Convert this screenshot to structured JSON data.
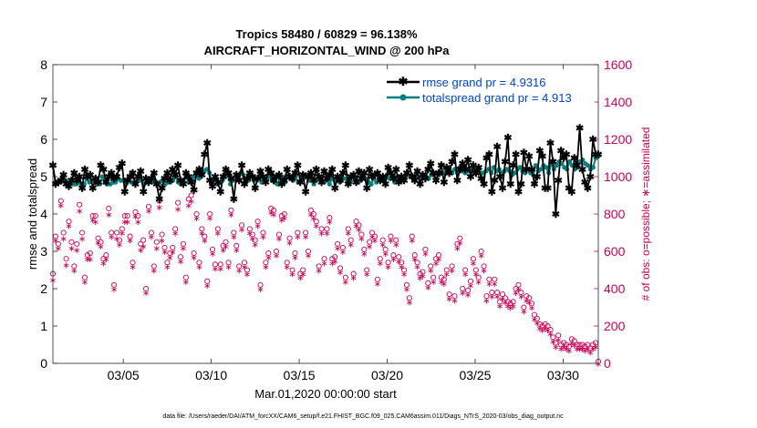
{
  "chart_data": {
    "type": "line",
    "title": "Tropics 58480 / 60829 = 96.138%",
    "subtitle": "AIRCRAFT_HORIZONTAL_WIND @ 200 hPa",
    "xlabel": "Mar.01,2020 00:00:00 start",
    "ylabel_left": "rmse and totalspread",
    "ylabel_right": "# of obs: o=possible; ∗=assimilated",
    "footer": "data file: /Users/raeder/DAI/ATM_forcXX/CAM6_setup/f.e21.FHIST_BGC.f09_025.CAM6assim.011/Diags_NTrS_2020-03/obs_diag_output.nc",
    "xlim": [
      1.0,
      32.0
    ],
    "ylim_left": [
      0,
      8
    ],
    "ylim_right": [
      0,
      1600
    ],
    "x_ticks": [
      5,
      10,
      15,
      20,
      25,
      30
    ],
    "x_tick_labels": [
      "03/05",
      "03/10",
      "03/15",
      "03/20",
      "03/25",
      "03/30"
    ],
    "y_left_ticks": [
      "0",
      "1",
      "2",
      "3",
      "4",
      "5",
      "6",
      "7",
      "8"
    ],
    "y_right_ticks": [
      "0",
      "200",
      "400",
      "600",
      "800",
      "1000",
      "1200",
      "1400",
      "1600"
    ],
    "legend": [
      {
        "label": "rmse grand pr = 4.9316",
        "color": "#000000"
      },
      {
        "label": "totalspread grand pr = 4.913",
        "color": "#00807f"
      }
    ],
    "colors": {
      "rmse": "#000000",
      "spread": "#00807f",
      "obs": "#cc0055",
      "legend_text": "#0044cc"
    },
    "series": [
      {
        "name": "rmse",
        "axis": "left",
        "values": [
          5.3,
          4.8,
          4.85,
          4.9,
          5.05,
          4.8,
          4.75,
          4.9,
          5.1,
          4.9,
          5.0,
          4.7,
          5.2,
          5.0,
          5.05,
          4.7,
          4.95,
          4.85,
          5.3,
          5.2,
          4.85,
          5.0,
          5.1,
          4.95,
          5.0,
          5.25,
          5.35,
          4.6,
          4.9,
          5.0,
          5.1,
          4.8,
          5.0,
          5.15,
          4.6,
          4.95,
          4.85,
          4.95,
          5.1,
          4.8,
          4.4,
          4.7,
          4.95,
          5.1,
          4.9,
          5.2,
          5.05,
          5.3,
          4.9,
          4.8,
          5.1,
          5.0,
          4.85,
          4.65,
          5.1,
          5.2,
          5.05,
          5.6,
          5.9,
          4.9,
          4.75,
          5.0,
          4.85,
          4.6,
          5.0,
          5.2,
          5.1,
          4.95,
          4.4,
          5.05,
          4.9,
          5.3,
          4.8,
          4.95,
          5.1,
          5.0,
          4.7,
          4.95,
          5.15,
          5.0,
          4.85,
          5.2,
          5.1,
          4.9,
          5.0,
          5.05,
          4.8,
          4.9,
          5.2,
          5.0,
          4.95,
          5.1,
          5.3,
          4.85,
          5.05,
          4.6,
          5.0,
          5.1,
          4.9,
          5.2,
          5.0,
          4.85,
          5.15,
          4.95,
          5.05,
          5.2,
          4.7,
          5.0,
          4.9,
          5.1,
          5.3,
          4.8,
          5.0,
          5.05,
          4.85,
          5.15,
          4.95,
          5.1,
          4.7,
          5.2,
          5.0,
          5.05,
          5.1,
          4.9,
          5.0,
          4.8,
          5.25,
          5.1,
          4.95,
          5.2,
          4.85,
          5.0,
          4.9,
          5.1,
          5.3,
          5.0,
          4.9,
          5.15,
          4.8,
          5.05,
          4.95,
          5.2,
          5.35,
          5.1,
          4.9,
          5.1,
          5.3,
          4.85,
          5.25,
          5.1,
          5.4,
          5.6,
          4.9,
          5.2,
          5.35,
          5.2,
          5.45,
          5.0,
          5.3,
          5.1,
          5.25,
          4.95,
          4.8,
          5.5,
          5.6,
          4.6,
          4.9,
          5.8,
          5.0,
          4.7,
          5.4,
          6.05,
          4.8,
          5.3,
          5.6,
          4.6,
          4.8,
          5.65,
          5.2,
          5.55,
          5.2,
          4.8,
          5.0,
          5.7,
          5.55,
          4.7,
          4.7,
          5.9,
          5.4,
          4.0,
          4.9,
          5.7,
          5.5,
          5.6,
          4.7,
          4.6,
          5.5,
          5.3,
          6.3,
          5.2,
          4.85,
          4.7,
          5.0,
          6.0,
          5.6,
          5.6
        ]
      },
      {
        "name": "totalspread",
        "axis": "left",
        "values": [
          5.3,
          4.85,
          4.85,
          4.85,
          4.9,
          4.9,
          4.8,
          4.85,
          4.8,
          4.8,
          4.85,
          4.8,
          4.8,
          4.95,
          4.85,
          4.9,
          4.9,
          4.8,
          4.8,
          5.0,
          4.85,
          4.8,
          4.8,
          4.85,
          4.85,
          4.95,
          4.9,
          4.9,
          4.8,
          4.95,
          4.85,
          4.85,
          4.85,
          4.9,
          4.9,
          4.8,
          4.85,
          4.9,
          4.85,
          4.9,
          4.8,
          4.85,
          4.9,
          4.8,
          4.85,
          4.85,
          4.9,
          5.0,
          4.85,
          4.8,
          4.9,
          5.0,
          4.85,
          4.9,
          5.0,
          5.1,
          4.95,
          5.1,
          5.15,
          5.2,
          5.1,
          4.85,
          4.95,
          4.8,
          4.85,
          4.9,
          5.0,
          5.05,
          4.8,
          4.9,
          4.95,
          5.0,
          5.1,
          5.05,
          4.85,
          4.9,
          5.05,
          4.9,
          4.95,
          4.95,
          4.85,
          4.9,
          4.95,
          5.0,
          4.9,
          4.85,
          4.8,
          4.95,
          5.0,
          4.85,
          5.0,
          4.95,
          4.9,
          5.0,
          4.85,
          4.9,
          4.95,
          5.05,
          4.9,
          4.95,
          4.8,
          4.9,
          4.95,
          5.0,
          4.85,
          4.95,
          4.8,
          4.95,
          4.9,
          5.0,
          4.85,
          4.95,
          4.95,
          4.9,
          4.85,
          5.0,
          4.95,
          4.85,
          4.9,
          5.0,
          4.95,
          4.85,
          4.8,
          4.95,
          4.85,
          5.0,
          4.9,
          4.95,
          5.05,
          4.95,
          5.0,
          4.85,
          5.0,
          4.95,
          4.9,
          5.0,
          5.05,
          5.0,
          4.95,
          5.05,
          5.0,
          4.95,
          5.05,
          5.0,
          4.95,
          5.05,
          5.05,
          5.1,
          5.05,
          5.1,
          5.1,
          5.15,
          5.2,
          5.1,
          5.2,
          5.1,
          5.25,
          5.15,
          5.1,
          5.15,
          5.2,
          5.15,
          5.1,
          5.2,
          5.1,
          5.1,
          5.15,
          5.2,
          5.1,
          5.25,
          5.15,
          5.2,
          5.1,
          5.15,
          5.2,
          5.15,
          5.05,
          5.1,
          5.2,
          5.25,
          5.15,
          5.1,
          5.2,
          5.1,
          5.05,
          5.3,
          5.15,
          5.2,
          5.3,
          5.25,
          5.1,
          5.35,
          5.2,
          5.3,
          5.4,
          5.35,
          5.25,
          5.2,
          5.4,
          5.3,
          5.2,
          5.25,
          5.4,
          5.45,
          5.35,
          5.3,
          5.2,
          5.25,
          5.5,
          5.55
        ]
      },
      {
        "name": "possible",
        "axis": "right",
        "marker": "circle",
        "values": [
          480,
          680,
          640,
          870,
          700,
          560,
          760,
          650,
          520,
          640,
          850,
          700,
          460,
          580,
          590,
          790,
          790,
          670,
          650,
          560,
          580,
          830,
          700,
          420,
          700,
          660,
          720,
          790,
          790,
          680,
          540,
          810,
          790,
          640,
          660,
          400,
          840,
          700,
          520,
          650,
          870,
          690,
          620,
          540,
          590,
          620,
          720,
          860,
          570,
          640,
          460,
          880,
          900,
          590,
          800,
          540,
          720,
          680,
          440,
          800,
          610,
          530,
          720,
          530,
          630,
          650,
          540,
          820,
          700,
          630,
          520,
          740,
          540,
          500,
          720,
          690,
          660,
          760,
          420,
          700,
          540,
          590,
          830,
          820,
          600,
          690,
          790,
          800,
          540,
          670,
          500,
          590,
          700,
          480,
          500,
          700,
          600,
          820,
          800,
          760,
          520,
          720,
          560,
          720,
          780,
          560,
          570,
          640,
          510,
          620,
          460,
          720,
          660,
          480,
          760,
          740,
          690,
          610,
          500,
          650,
          700,
          680,
          450,
          560,
          660,
          610,
          540,
          680,
          580,
          660,
          570,
          540,
          500,
          420,
          350,
          680,
          580,
          540,
          480,
          490,
          610,
          430,
          520,
          460,
          560,
          580,
          460,
          450,
          500,
          370,
          520,
          360,
          640,
          670,
          400,
          500,
          390,
          440,
          560,
          500,
          460,
          600,
          520,
          360,
          450,
          380,
          450,
          380,
          330,
          370,
          350,
          330,
          320,
          330,
          400,
          420,
          380,
          300,
          360,
          350,
          320,
          260,
          240,
          210,
          200,
          210,
          200,
          180,
          140,
          110,
          150,
          100,
          110,
          100,
          90,
          130,
          120,
          100,
          100,
          100,
          90,
          100,
          80,
          100,
          110,
          10
        ]
      },
      {
        "name": "assimilated",
        "axis": "right",
        "marker": "star",
        "values": [
          450,
          660,
          620,
          850,
          670,
          530,
          740,
          620,
          500,
          610,
          820,
          670,
          440,
          560,
          560,
          770,
          760,
          650,
          630,
          540,
          560,
          800,
          680,
          400,
          670,
          640,
          700,
          760,
          760,
          660,
          520,
          790,
          760,
          610,
          630,
          380,
          820,
          680,
          500,
          620,
          840,
          660,
          600,
          520,
          570,
          600,
          700,
          830,
          550,
          620,
          440,
          850,
          870,
          570,
          780,
          520,
          700,
          660,
          420,
          780,
          590,
          510,
          700,
          510,
          610,
          630,
          520,
          800,
          680,
          610,
          500,
          720,
          520,
          480,
          700,
          670,
          640,
          740,
          400,
          680,
          520,
          570,
          810,
          800,
          580,
          670,
          770,
          780,
          520,
          650,
          480,
          570,
          680,
          460,
          480,
          680,
          580,
          800,
          780,
          740,
          500,
          700,
          540,
          700,
          760,
          540,
          550,
          620,
          490,
          600,
          440,
          700,
          640,
          460,
          740,
          720,
          670,
          590,
          480,
          630,
          680,
          660,
          430,
          540,
          640,
          590,
          520,
          660,
          560,
          640,
          550,
          520,
          480,
          400,
          330,
          660,
          560,
          520,
          460,
          470,
          590,
          410,
          500,
          440,
          540,
          560,
          440,
          430,
          480,
          350,
          500,
          340,
          620,
          650,
          380,
          480,
          370,
          420,
          540,
          480,
          440,
          580,
          500,
          340,
          430,
          360,
          430,
          360,
          310,
          350,
          330,
          310,
          300,
          310,
          380,
          400,
          360,
          280,
          340,
          330,
          300,
          240,
          220,
          190,
          180,
          190,
          180,
          160,
          120,
          90,
          130,
          80,
          90,
          80,
          70,
          110,
          100,
          80,
          80,
          80,
          70,
          80,
          60,
          80,
          90,
          0
        ]
      }
    ]
  }
}
